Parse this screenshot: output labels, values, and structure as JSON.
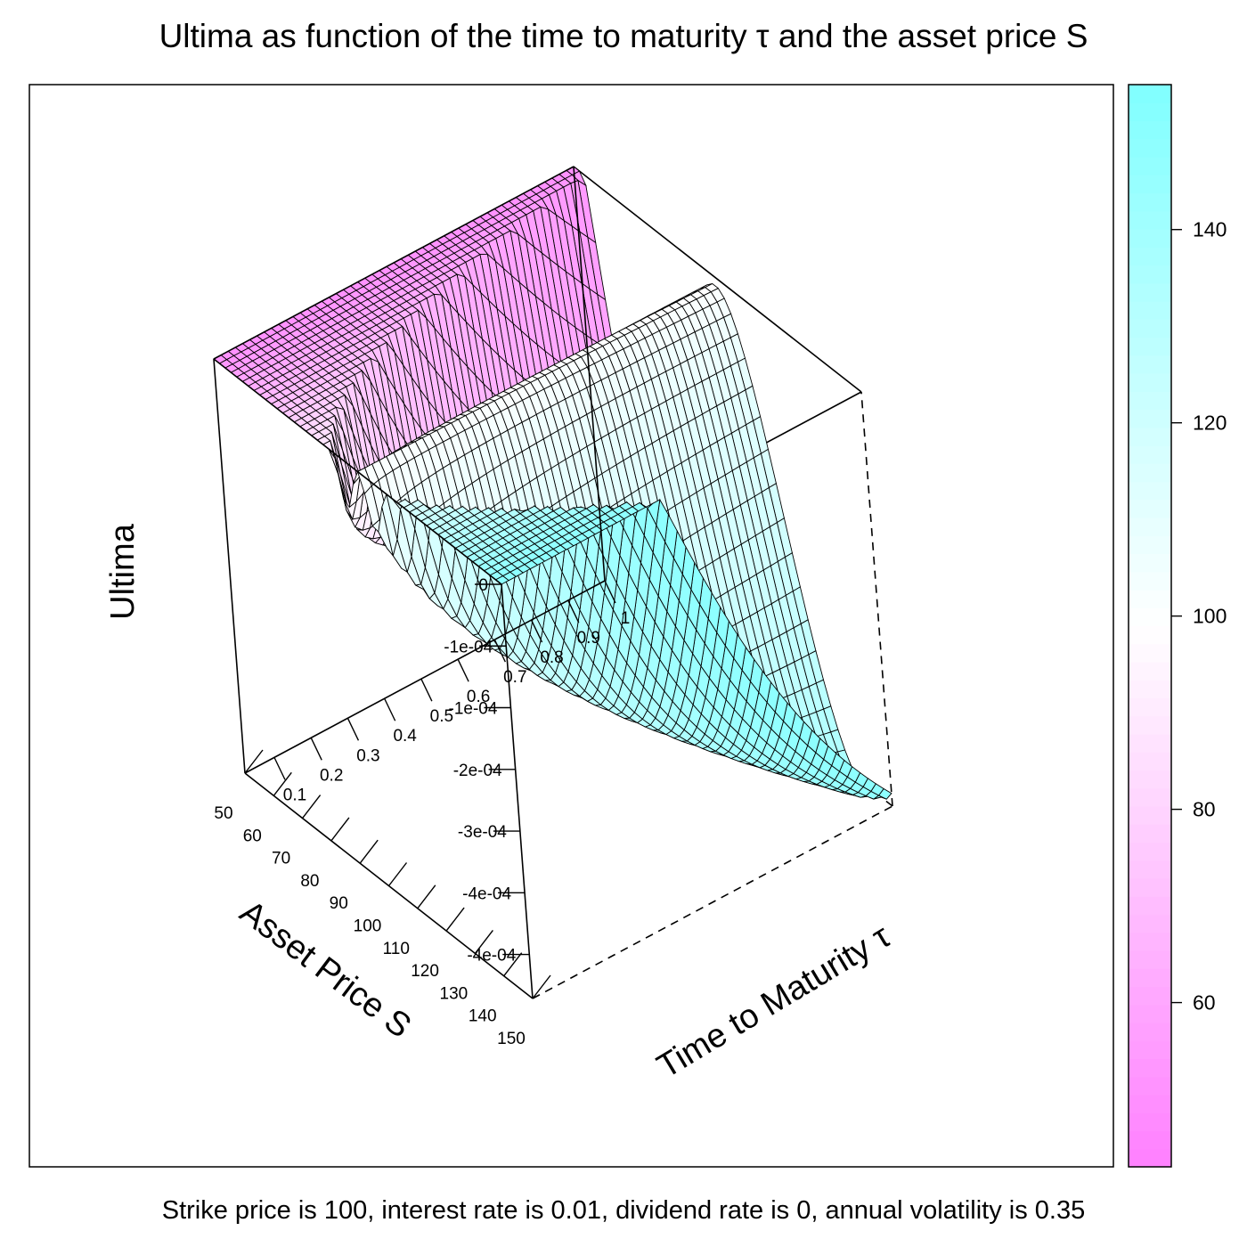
{
  "chart_data": {
    "type": "surface3d",
    "title": "Ultima as function of the time to maturity τ and the asset price S",
    "subtitle": "Strike price is 100, interest rate is 0.01, dividend rate is 0, annual volatility is 0.35",
    "xlabel": "Asset Price S",
    "ylabel": "Time to Maturity  τ",
    "zlabel": "Ultima",
    "x_ticks": [
      "150",
      "140",
      "130",
      "120",
      "110",
      "100",
      "90",
      "80",
      "70",
      "60",
      "50"
    ],
    "y_ticks": [
      "0.1",
      "0.2",
      "0.3",
      "0.4",
      "0.5",
      "0.6",
      "0.7",
      "0.8",
      "0.9",
      "1"
    ],
    "z_ticks": [
      "0",
      "-1e-04",
      "-1e-04",
      "-2e-04",
      "-3e-04",
      "-4e-04",
      "-4e-04"
    ],
    "xlim": [
      50,
      150
    ],
    "ylim": [
      0.02,
      1
    ],
    "zlim": [
      -0.00047,
      0
    ],
    "strike": 100,
    "interest_rate": 0.01,
    "dividend_rate": 0,
    "volatility": 0.35,
    "colorbar": {
      "ticks": [
        "140",
        "120",
        "100",
        "80",
        "60"
      ],
      "range": [
        43,
        155
      ],
      "low_color": "#ff80ff",
      "mid_color": "#ffffff",
      "high_color": "#80ffff"
    }
  }
}
